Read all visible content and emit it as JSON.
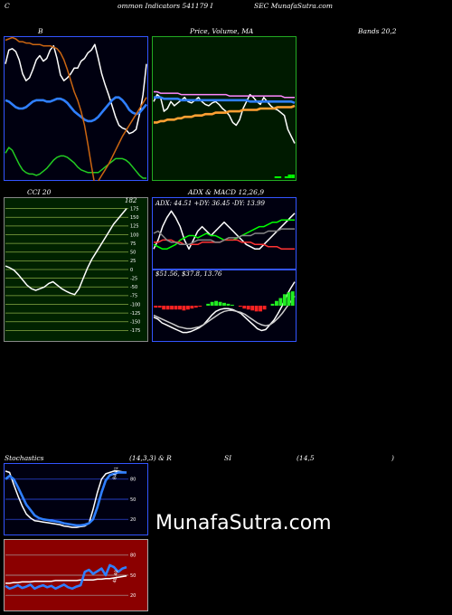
{
  "header": {
    "c": "C",
    "title_mid": "ommon Indicators 541179 I",
    "title_right": "SEC MunafaSutra.com"
  },
  "labels": {
    "b": "B",
    "price_ma": "Price, Volume, MA",
    "bands": "Bands 20,2",
    "cci": "CCI 20",
    "adx_title": "ADX  & MACD 12,26,9",
    "stoch": "Stochastics",
    "stoch_params": "(14,3,3) & R",
    "si": "SI",
    "rsi_params": "(14,5",
    "rsi_close": ")"
  },
  "watermark": "MunafaSutra.com",
  "chart_data": [
    {
      "id": "bollinger",
      "type": "line",
      "background": "#000010",
      "series": [
        {
          "color": "#ffffff",
          "values": [
            82,
            92,
            93,
            91,
            85,
            75,
            70,
            72,
            78,
            85,
            88,
            84,
            86,
            92,
            95,
            86,
            74,
            70,
            72,
            75,
            79,
            79,
            84,
            86,
            90,
            92,
            96,
            86,
            75,
            67,
            60,
            52,
            44,
            38,
            36,
            35,
            32,
            33,
            35,
            46,
            60,
            82
          ]
        },
        {
          "color": "#2f7fff",
          "values": [
            56,
            55,
            53,
            51,
            50,
            50,
            51,
            53,
            55,
            56,
            56,
            56,
            55,
            55,
            56,
            57,
            57,
            56,
            54,
            51,
            48,
            46,
            44,
            42,
            41,
            41,
            42,
            44,
            47,
            50,
            53,
            56,
            58,
            58,
            56,
            53,
            49,
            47,
            46,
            47,
            50,
            53
          ]
        },
        {
          "color": "#22cc22",
          "values": [
            18,
            22,
            20,
            15,
            10,
            6,
            4,
            3,
            3,
            2,
            3,
            5,
            7,
            10,
            13,
            15,
            16,
            16,
            15,
            13,
            11,
            8,
            6,
            5,
            4,
            4,
            4,
            4,
            6,
            8,
            10,
            12,
            14,
            14,
            14,
            13,
            11,
            8,
            5,
            2,
            0,
            0
          ]
        },
        {
          "color": "#cc6611",
          "values": [
            99,
            100,
            101,
            100,
            98,
            98,
            97,
            97,
            96,
            96,
            96,
            95,
            95,
            95,
            94,
            93,
            90,
            85,
            78,
            70,
            62,
            56,
            48,
            38,
            24,
            9,
            -5,
            -2,
            2,
            6,
            10,
            15,
            20,
            25,
            30,
            34,
            38,
            42,
            46,
            50,
            54,
            58
          ]
        }
      ]
    },
    {
      "id": "price_volume_ma",
      "type": "line",
      "background": "#001a00",
      "series": [
        {
          "color": "#ffffff",
          "values": [
            55,
            60,
            58,
            48,
            50,
            55,
            52,
            54,
            56,
            58,
            55,
            54,
            56,
            58,
            55,
            53,
            52,
            54,
            55,
            53,
            50,
            48,
            45,
            40,
            38,
            42,
            50,
            55,
            60,
            58,
            55,
            53,
            58,
            55,
            52,
            50,
            49,
            47,
            45,
            35,
            30,
            25
          ]
        },
        {
          "color": "#ff88ff",
          "values": [
            62,
            62,
            61,
            61,
            61,
            61,
            61,
            61,
            60,
            60,
            60,
            60,
            60,
            60,
            60,
            60,
            60,
            60,
            60,
            60,
            60,
            60,
            59,
            59,
            59,
            59,
            59,
            59,
            59,
            59,
            59,
            59,
            59,
            59,
            59,
            59,
            59,
            59,
            58,
            58,
            58,
            58
          ]
        },
        {
          "color": "#2f7fff",
          "values": [
            58,
            58,
            58,
            57,
            57,
            57,
            57,
            57,
            56,
            56,
            56,
            56,
            56,
            56,
            56,
            56,
            56,
            56,
            56,
            56,
            56,
            56,
            56,
            56,
            56,
            56,
            56,
            56,
            55,
            55,
            55,
            55,
            55,
            55,
            55,
            55,
            55,
            55,
            55,
            55,
            55,
            54
          ]
        },
        {
          "color": "#ffa033",
          "values": [
            40,
            40,
            41,
            41,
            42,
            42,
            42,
            43,
            43,
            44,
            44,
            44,
            45,
            45,
            45,
            46,
            46,
            46,
            47,
            47,
            47,
            47,
            48,
            48,
            48,
            48,
            49,
            49,
            49,
            49,
            49,
            50,
            50,
            50,
            50,
            50,
            51,
            51,
            51,
            51,
            51,
            52
          ]
        },
        {
          "color": "#00ff00",
          "volume": [
            0,
            0,
            0,
            0,
            0,
            0,
            0,
            0,
            0,
            0,
            0,
            0,
            0,
            0,
            0,
            0,
            0,
            0,
            0,
            0,
            0,
            0,
            0,
            0,
            0,
            0,
            0,
            0,
            0,
            0,
            0,
            0,
            0,
            0,
            0,
            0,
            1,
            1,
            0,
            1,
            2,
            2
          ]
        }
      ]
    },
    {
      "id": "cci",
      "type": "line",
      "background": "#002200",
      "yticks": [
        175,
        150,
        125,
        100,
        75,
        50,
        25,
        0,
        -25,
        -50,
        -75,
        -100,
        -125,
        -150,
        -175
      ],
      "value_label": "182",
      "series": [
        {
          "color": "#ffffff",
          "values": [
            10,
            5,
            -2,
            -15,
            -30,
            -45,
            -55,
            -60,
            -55,
            -50,
            -40,
            -35,
            -45,
            -55,
            -62,
            -68,
            -72,
            -55,
            -25,
            5,
            30,
            50,
            70,
            90,
            110,
            130,
            145,
            160,
            175
          ]
        }
      ]
    },
    {
      "id": "adx",
      "type": "line",
      "background": "#000010",
      "adx_text": "ADX: 44.51  +DY: 36.45  -DY: 13.99",
      "series": [
        {
          "color": "#ffffff",
          "values": [
            8,
            12,
            18,
            22,
            25,
            22,
            18,
            12,
            8,
            12,
            16,
            18,
            16,
            14,
            16,
            18,
            20,
            18,
            16,
            14,
            12,
            10,
            9,
            8,
            8,
            10,
            12,
            14,
            16,
            18,
            20,
            22,
            24
          ]
        },
        {
          "color": "#00ff00",
          "values": [
            10,
            9,
            8,
            8,
            9,
            10,
            12,
            13,
            14,
            14,
            13,
            14,
            15,
            14,
            14,
            13,
            12,
            12,
            12,
            13,
            14,
            15,
            16,
            17,
            18,
            18,
            19,
            20,
            20,
            21,
            21,
            21,
            21
          ]
        },
        {
          "color": "#ff3333",
          "values": [
            11,
            11,
            12,
            12,
            12,
            11,
            11,
            10,
            10,
            10,
            10,
            11,
            11,
            11,
            11,
            11,
            12,
            12,
            12,
            12,
            11,
            11,
            11,
            10,
            10,
            10,
            9,
            9,
            9,
            8,
            8,
            8,
            8
          ]
        },
        {
          "color": "#888888",
          "values": [
            15,
            16,
            14,
            12,
            11,
            11,
            10,
            10,
            10,
            11,
            12,
            12,
            12,
            12,
            11,
            11,
            12,
            13,
            13,
            13,
            14,
            14,
            14,
            15,
            15,
            15,
            16,
            16,
            16,
            17,
            17,
            17,
            17
          ]
        }
      ]
    },
    {
      "id": "macd",
      "type": "bar",
      "background": "#000010",
      "macd_text": "$51.56,  $37.8,  13.76",
      "series": [
        {
          "color": "#ffffff",
          "values": [
            -12,
            -14,
            -18,
            -20,
            -22,
            -24,
            -26,
            -28,
            -28,
            -27,
            -25,
            -23,
            -20,
            -15,
            -10,
            -6,
            -4,
            -3,
            -3,
            -4,
            -6,
            -8,
            -12,
            -16,
            -20,
            -24,
            -26,
            -25,
            -20,
            -15,
            -8,
            0,
            10,
            18,
            25
          ]
        },
        {
          "color": "#cccccc",
          "values": [
            -10,
            -12,
            -14,
            -16,
            -18,
            -20,
            -22,
            -23,
            -24,
            -24,
            -23,
            -22,
            -20,
            -17,
            -14,
            -11,
            -8,
            -6,
            -5,
            -5,
            -6,
            -7,
            -9,
            -12,
            -15,
            -18,
            -20,
            -21,
            -20,
            -17,
            -13,
            -8,
            -2,
            4,
            10
          ]
        },
        {
          "color": "#ff2222",
          "histogram": [
            -2,
            -2,
            -4,
            -4,
            -4,
            -4,
            -4,
            -5,
            -4,
            -3,
            -2,
            -1,
            0,
            2,
            4,
            5,
            4,
            3,
            2,
            1,
            0,
            -1,
            -3,
            -4,
            -5,
            -6,
            -6,
            -4,
            0,
            2,
            5,
            8,
            12,
            14,
            15
          ]
        }
      ]
    },
    {
      "id": "stochastics",
      "type": "line",
      "background": "#000010",
      "yticks": [
        80,
        50,
        20
      ],
      "value_label": "84.81",
      "series": [
        {
          "color": "#ffffff",
          "values": [
            92,
            90,
            72,
            55,
            40,
            28,
            22,
            18,
            17,
            16,
            15,
            14,
            13,
            12,
            10,
            9,
            8,
            8,
            9,
            10,
            14,
            35,
            60,
            80,
            88,
            90,
            92,
            92,
            91,
            90
          ]
        },
        {
          "color": "#2f7fff",
          "values": [
            80,
            85,
            80,
            68,
            55,
            42,
            34,
            26,
            22,
            20,
            19,
            18,
            17,
            16,
            14,
            13,
            12,
            11,
            11,
            12,
            14,
            20,
            38,
            60,
            78,
            86,
            88,
            90,
            90,
            90
          ]
        }
      ]
    },
    {
      "id": "rsi",
      "type": "line",
      "background": "#8b0000",
      "yticks": [
        80,
        50,
        20
      ],
      "value_label": "48.40",
      "series": [
        {
          "color": "#ffffff",
          "values": [
            38,
            38,
            39,
            39,
            40,
            40,
            40,
            41,
            41,
            41,
            41,
            41,
            42,
            42,
            42,
            42,
            42,
            42,
            43,
            43,
            43,
            43,
            44,
            44,
            45,
            45,
            46,
            47,
            48,
            49
          ]
        },
        {
          "color": "#2f7fff",
          "values": [
            34,
            30,
            32,
            35,
            31,
            33,
            36,
            30,
            33,
            35,
            32,
            34,
            30,
            33,
            36,
            32,
            30,
            33,
            35,
            55,
            58,
            52,
            56,
            60,
            50,
            65,
            62,
            55,
            60,
            62
          ]
        }
      ]
    }
  ]
}
